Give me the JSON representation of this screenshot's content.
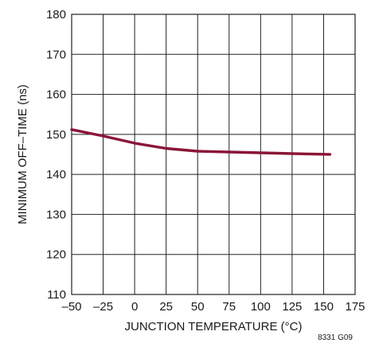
{
  "chart_data": {
    "type": "line",
    "xlabel": "JUNCTION TEMPERATURE (°C)",
    "ylabel": "MINIMUM OFF–TIME (ns)",
    "xlim": [
      -50,
      175
    ],
    "ylim": [
      110,
      180
    ],
    "x_ticks": [
      -50,
      -25,
      0,
      25,
      50,
      75,
      100,
      125,
      150,
      175
    ],
    "x_tick_labels": [
      "–50",
      "–25",
      "0",
      "25",
      "50",
      "75",
      "100",
      "125",
      "150",
      "175"
    ],
    "y_ticks": [
      110,
      120,
      130,
      140,
      150,
      160,
      170,
      180
    ],
    "y_tick_labels": [
      "110",
      "120",
      "130",
      "140",
      "150",
      "160",
      "170",
      "180"
    ],
    "grid": true,
    "series": [
      {
        "color": "#8b1538",
        "x": [
          -50,
          -25,
          0,
          25,
          50,
          75,
          100,
          125,
          155
        ],
        "y": [
          151.2,
          149.6,
          147.8,
          146.5,
          145.8,
          145.6,
          145.4,
          145.2,
          145.0
        ]
      }
    ]
  },
  "figure_id": "8331 G09"
}
